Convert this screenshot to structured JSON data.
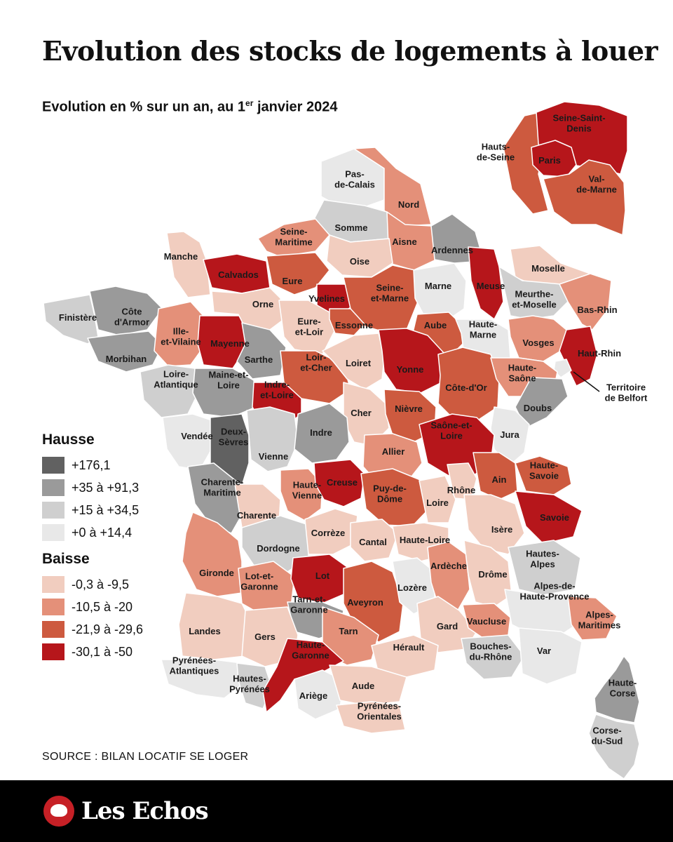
{
  "title": "Evolution des stocks de logements à louer",
  "subtitle": {
    "text": "Evolution en % sur un an, au 1",
    "sup": "er",
    "rest": " janvier 2024"
  },
  "colors": {
    "c176": "#616161",
    "c35": "#9a9a9a",
    "c15": "#cfcfcf",
    "c0": "#e8e8e8",
    "b1": "#f1cdbf",
    "b2": "#e49079",
    "b3": "#cd5a3f",
    "b4": "#b6161b"
  },
  "legend": {
    "hausse_title": "Hausse",
    "hausse": [
      {
        "label": "+176,1",
        "color": "#616161"
      },
      {
        "label": "+35 à +91,3",
        "color": "#9a9a9a"
      },
      {
        "label": "+15 à +34,5",
        "color": "#cfcfcf"
      },
      {
        "label": "+0 à +14,4",
        "color": "#e8e8e8"
      }
    ],
    "baisse_title": "Baisse",
    "baisse": [
      {
        "label": "-0,3 à -9,5",
        "color": "#f1cdbf"
      },
      {
        "label": "-10,5 à -20",
        "color": "#e49079"
      },
      {
        "label": "-21,9 à -29,6",
        "color": "#cd5a3f"
      },
      {
        "label": "-30,1 à -50",
        "color": "#b6161b"
      }
    ]
  },
  "departments": [
    {
      "id": "pas-de-calais",
      "lines": [
        "Pas-",
        "de-Calais"
      ],
      "class": "c0"
    },
    {
      "id": "nord",
      "lines": [
        "Nord"
      ],
      "class": "b2"
    },
    {
      "id": "somme",
      "lines": [
        "Somme"
      ],
      "class": "c15"
    },
    {
      "id": "aisne",
      "lines": [
        "Aisne"
      ],
      "class": "b2"
    },
    {
      "id": "ardennes",
      "lines": [
        "Ardennes"
      ],
      "class": "c35"
    },
    {
      "id": "seine-maritime",
      "lines": [
        "Seine-",
        "Maritime"
      ],
      "class": "b2"
    },
    {
      "id": "oise",
      "lines": [
        "Oise"
      ],
      "class": "b1"
    },
    {
      "id": "manche",
      "lines": [
        "Manche"
      ],
      "class": "b1"
    },
    {
      "id": "calvados",
      "lines": [
        "Calvados"
      ],
      "class": "b4"
    },
    {
      "id": "eure",
      "lines": [
        "Eure"
      ],
      "class": "b3"
    },
    {
      "id": "yvelines",
      "lines": [
        "Yvelines"
      ],
      "class": "b4"
    },
    {
      "id": "seine-et-marne",
      "lines": [
        "Seine-",
        "et-Marne"
      ],
      "class": "b3"
    },
    {
      "id": "marne",
      "lines": [
        "Marne"
      ],
      "class": "c0"
    },
    {
      "id": "meuse",
      "lines": [
        "Meuse"
      ],
      "class": "b4"
    },
    {
      "id": "moselle",
      "lines": [
        "Moselle"
      ],
      "class": "b1"
    },
    {
      "id": "meurthe-et-moselle",
      "lines": [
        "Meurthe-",
        "et-Moselle"
      ],
      "class": "c15"
    },
    {
      "id": "bas-rhin",
      "lines": [
        "Bas-Rhin"
      ],
      "class": "b2"
    },
    {
      "id": "finistere",
      "lines": [
        "Finistère"
      ],
      "class": "c15"
    },
    {
      "id": "cotes-d-armor",
      "lines": [
        "Côte",
        "d'Armor"
      ],
      "class": "c35"
    },
    {
      "id": "morbihan",
      "lines": [
        "Morbihan"
      ],
      "class": "c35"
    },
    {
      "id": "ille-et-vilaine",
      "lines": [
        "Ille-",
        "et-Vilaine"
      ],
      "class": "b2"
    },
    {
      "id": "mayenne",
      "lines": [
        "Mayenne"
      ],
      "class": "b4"
    },
    {
      "id": "orne",
      "lines": [
        "Orne"
      ],
      "class": "b1"
    },
    {
      "id": "sarthe",
      "lines": [
        "Sarthe"
      ],
      "class": "c35"
    },
    {
      "id": "eure-et-loir",
      "lines": [
        "Eure-",
        "et-Loir"
      ],
      "class": "b1"
    },
    {
      "id": "essonne",
      "lines": [
        "Essonne"
      ],
      "class": "b3"
    },
    {
      "id": "aube",
      "lines": [
        "Aube"
      ],
      "class": "b3"
    },
    {
      "id": "haute-marne",
      "lines": [
        "Haute-",
        "Marne"
      ],
      "class": "c0"
    },
    {
      "id": "vosges",
      "lines": [
        "Vosges"
      ],
      "class": "b2"
    },
    {
      "id": "haut-rhin",
      "lines": [
        "Haut-Rhin"
      ],
      "class": "b4"
    },
    {
      "id": "territoire-de-belfort",
      "lines": [
        "Territoire",
        "de Belfort"
      ],
      "class": "c0"
    },
    {
      "id": "loire-atlantique",
      "lines": [
        "Loire-",
        "Atlantique"
      ],
      "class": "c15"
    },
    {
      "id": "maine-et-loire",
      "lines": [
        "Maine-et-",
        "Loire"
      ],
      "class": "c35"
    },
    {
      "id": "loir-et-cher",
      "lines": [
        "Loir-",
        "et-Cher"
      ],
      "class": "b3"
    },
    {
      "id": "loiret",
      "lines": [
        "Loiret"
      ],
      "class": "b1"
    },
    {
      "id": "yonne",
      "lines": [
        "Yonne"
      ],
      "class": "b4"
    },
    {
      "id": "cote-d-or",
      "lines": [
        "Côte-d'Or"
      ],
      "class": "b3"
    },
    {
      "id": "haute-saone",
      "lines": [
        "Haute-",
        "Saône"
      ],
      "class": "b2"
    },
    {
      "id": "doubs",
      "lines": [
        "Doubs"
      ],
      "class": "c35"
    },
    {
      "id": "indre-et-loire",
      "lines": [
        "Indre-",
        "et-Loire"
      ],
      "class": "b4"
    },
    {
      "id": "cher",
      "lines": [
        "Cher"
      ],
      "class": "b1"
    },
    {
      "id": "nievre",
      "lines": [
        "Nièvre"
      ],
      "class": "b3"
    },
    {
      "id": "jura",
      "lines": [
        "Jura"
      ],
      "class": "c0"
    },
    {
      "id": "vendee",
      "lines": [
        "Vendée"
      ],
      "class": "c0"
    },
    {
      "id": "deux-sevres",
      "lines": [
        "Deux-",
        "Sèvres"
      ],
      "class": "c176"
    },
    {
      "id": "vienne",
      "lines": [
        "Vienne"
      ],
      "class": "c15"
    },
    {
      "id": "indre",
      "lines": [
        "Indre"
      ],
      "class": "c35"
    },
    {
      "id": "allier",
      "lines": [
        "Allier"
      ],
      "class": "b2"
    },
    {
      "id": "saone-et-loire",
      "lines": [
        "Saône-et-",
        "Loire"
      ],
      "class": "b4"
    },
    {
      "id": "ain",
      "lines": [
        "Ain"
      ],
      "class": "b3"
    },
    {
      "id": "haute-savoie",
      "lines": [
        "Haute-",
        "Savoie"
      ],
      "class": "b3"
    },
    {
      "id": "charente-maritime",
      "lines": [
        "Charente-",
        "Maritime"
      ],
      "class": "c35"
    },
    {
      "id": "charente",
      "lines": [
        "Charente"
      ],
      "class": "b1"
    },
    {
      "id": "haute-vienne",
      "lines": [
        "Haute-",
        "Vienne"
      ],
      "class": "b2"
    },
    {
      "id": "creuse",
      "lines": [
        "Creuse"
      ],
      "class": "b4"
    },
    {
      "id": "puy-de-dome",
      "lines": [
        "Puy-de-",
        "Dôme"
      ],
      "class": "b3"
    },
    {
      "id": "rhone",
      "lines": [
        "Rhône"
      ],
      "class": "b1"
    },
    {
      "id": "loire",
      "lines": [
        "Loire"
      ],
      "class": "b1"
    },
    {
      "id": "savoie",
      "lines": [
        "Savoie"
      ],
      "class": "b4"
    },
    {
      "id": "isere",
      "lines": [
        "Isère"
      ],
      "class": "b1"
    },
    {
      "id": "dordogne",
      "lines": [
        "Dordogne"
      ],
      "class": "c15"
    },
    {
      "id": "correze",
      "lines": [
        "Corrèze"
      ],
      "class": "b1"
    },
    {
      "id": "cantal",
      "lines": [
        "Cantal"
      ],
      "class": "b1"
    },
    {
      "id": "haute-loire",
      "lines": [
        "Haute-Loire"
      ],
      "class": "b1"
    },
    {
      "id": "gironde",
      "lines": [
        "Gironde"
      ],
      "class": "b2"
    },
    {
      "id": "lot-et-garonne",
      "lines": [
        "Lot-et-",
        "Garonne"
      ],
      "class": "b2"
    },
    {
      "id": "lot",
      "lines": [
        "Lot"
      ],
      "class": "b4"
    },
    {
      "id": "aveyron",
      "lines": [
        "Aveyron"
      ],
      "class": "b3"
    },
    {
      "id": "lozere",
      "lines": [
        "Lozère"
      ],
      "class": "c0"
    },
    {
      "id": "ardeche",
      "lines": [
        "Ardèche"
      ],
      "class": "b2"
    },
    {
      "id": "drome",
      "lines": [
        "Drôme"
      ],
      "class": "b1"
    },
    {
      "id": "hautes-alpes",
      "lines": [
        "Hautes-",
        "Alpes"
      ],
      "class": "c15"
    },
    {
      "id": "landes",
      "lines": [
        "Landes"
      ],
      "class": "b1"
    },
    {
      "id": "tarn-et-garonne",
      "lines": [
        "Tarn-et-",
        "Garonne"
      ],
      "class": "c35"
    },
    {
      "id": "gers",
      "lines": [
        "Gers"
      ],
      "class": "b1"
    },
    {
      "id": "tarn",
      "lines": [
        "Tarn"
      ],
      "class": "b2"
    },
    {
      "id": "gard",
      "lines": [
        "Gard"
      ],
      "class": "b1"
    },
    {
      "id": "vaucluse",
      "lines": [
        "Vaucluse"
      ],
      "class": "b2"
    },
    {
      "id": "alpes-de-haute-provence",
      "lines": [
        "Alpes-de-",
        "Haute-Provence"
      ],
      "class": "c0"
    },
    {
      "id": "alpes-maritimes",
      "lines": [
        "Alpes-",
        "Maritimes"
      ],
      "class": "b2"
    },
    {
      "id": "pyrenees-atlantiques",
      "lines": [
        "Pyrénées-",
        "Atlantiques"
      ],
      "class": "c0"
    },
    {
      "id": "hautes-pyrenees",
      "lines": [
        "Hautes-",
        "Pyrénées"
      ],
      "class": "c15"
    },
    {
      "id": "haute-garonne",
      "lines": [
        "Haute-",
        "Garonne"
      ],
      "class": "b4"
    },
    {
      "id": "herault",
      "lines": [
        "Hérault"
      ],
      "class": "b1"
    },
    {
      "id": "bouches-du-rhone",
      "lines": [
        "Bouches-",
        "du-Rhône"
      ],
      "class": "c15"
    },
    {
      "id": "var",
      "lines": [
        "Var"
      ],
      "class": "c0"
    },
    {
      "id": "ariege",
      "lines": [
        "Ariège"
      ],
      "class": "c0"
    },
    {
      "id": "aude",
      "lines": [
        "Aude"
      ],
      "class": "b1"
    },
    {
      "id": "pyrenees-orientales",
      "lines": [
        "Pyrénées-",
        "Orientales"
      ],
      "class": "b1"
    },
    {
      "id": "haute-corse",
      "lines": [
        "Haute-",
        "Corse"
      ],
      "class": "c35"
    },
    {
      "id": "corse-du-sud",
      "lines": [
        "Corse-",
        "du-Sud"
      ],
      "class": "c15"
    },
    {
      "id": "hauts-de-seine",
      "lines": [
        "Hauts-",
        "de-Seine"
      ],
      "class": "b3"
    },
    {
      "id": "seine-saint-denis",
      "lines": [
        "Seine-Saint-",
        "Denis"
      ],
      "class": "b4"
    },
    {
      "id": "paris",
      "lines": [
        "Paris"
      ],
      "class": "b4"
    },
    {
      "id": "val-de-marne",
      "lines": [
        "Val-",
        "de-Marne"
      ],
      "class": "b3"
    }
  ],
  "source": "SOURCE : BILAN LOCATIF SE LOGER",
  "brand": "Les Echos"
}
